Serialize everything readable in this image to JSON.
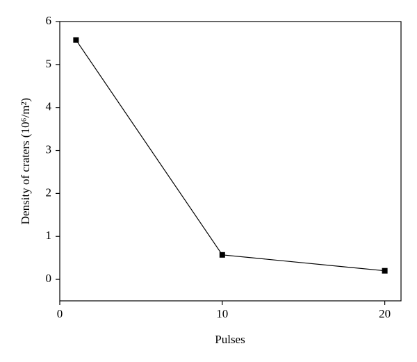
{
  "chart_data": {
    "type": "line",
    "x_label": "Pulses",
    "y_label": "Density of craters (10⁶/m²)",
    "x": [
      1,
      10,
      20
    ],
    "series": [
      {
        "color": "#000000",
        "values": [
          5.57,
          0.57,
          0.2
        ]
      }
    ],
    "xlim": [
      0,
      21
    ],
    "xticks": [
      0,
      10,
      20
    ],
    "ylim": [
      -0.5,
      6
    ],
    "yticks": [
      0,
      1,
      2,
      3,
      4,
      5,
      6
    ]
  }
}
